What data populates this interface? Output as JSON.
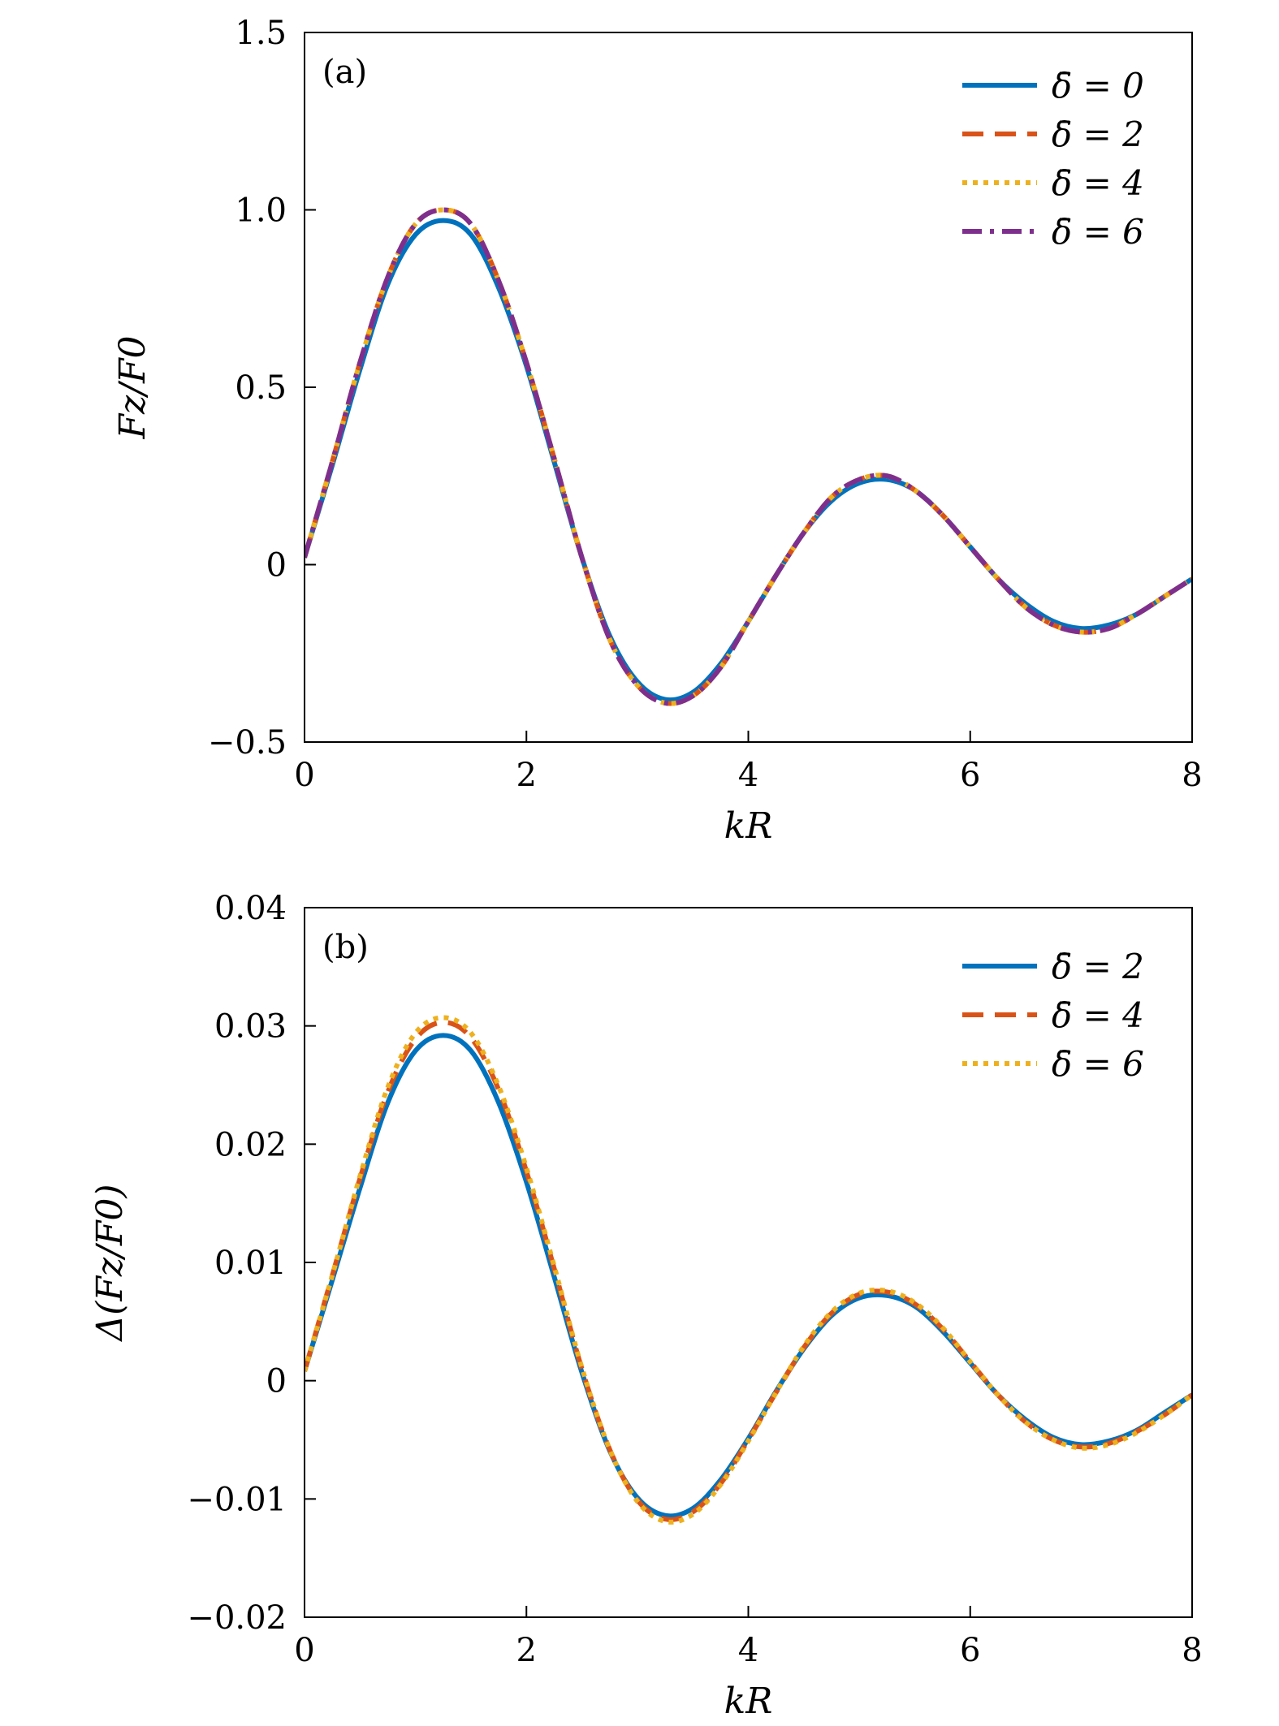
{
  "colors": {
    "series_0": "#0072BD",
    "series_1": "#D95319",
    "series_2": "#EDB120",
    "series_3": "#7E2F8E"
  },
  "chart_data": [
    {
      "type": "line",
      "panel_label": "(a)",
      "xlabel": "kR",
      "ylabel": "Fz/F0",
      "xlim": [
        0,
        8
      ],
      "ylim": [
        -0.5,
        1.5
      ],
      "xticks": [
        0,
        2,
        4,
        6,
        8
      ],
      "xtick_labels": [
        "0",
        "2",
        "4",
        "6",
        "8"
      ],
      "yticks": [
        -0.5,
        0,
        0.5,
        1.0,
        1.5
      ],
      "ytick_labels": [
        "−0.5",
        "0",
        "0.5",
        "1.0",
        "1.5"
      ],
      "grid": false,
      "legend_position": "top-right",
      "x": [
        0.0,
        0.25,
        0.5,
        0.75,
        1.0,
        1.25,
        1.5,
        1.75,
        2.0,
        2.25,
        2.5,
        2.75,
        3.0,
        3.25,
        3.5,
        3.75,
        4.0,
        4.25,
        4.5,
        4.75,
        5.0,
        5.25,
        5.5,
        5.75,
        6.0,
        6.25,
        6.5,
        6.75,
        7.0,
        7.25,
        7.5,
        7.75,
        8.0
      ],
      "series": [
        {
          "name": "δ̄ = 0",
          "style": "solid",
          "values": [
            0.02,
            0.28,
            0.55,
            0.79,
            0.93,
            0.97,
            0.93,
            0.78,
            0.56,
            0.29,
            0.02,
            -0.2,
            -0.33,
            -0.38,
            -0.36,
            -0.28,
            -0.16,
            -0.03,
            0.09,
            0.18,
            0.23,
            0.24,
            0.21,
            0.14,
            0.05,
            -0.04,
            -0.11,
            -0.16,
            -0.18,
            -0.17,
            -0.14,
            -0.09,
            -0.04
          ]
        },
        {
          "name": "δ̄ = 2",
          "style": "dashed",
          "values": [
            0.02,
            0.29,
            0.57,
            0.81,
            0.96,
            1.0,
            0.96,
            0.8,
            0.57,
            0.3,
            0.02,
            -0.21,
            -0.34,
            -0.39,
            -0.37,
            -0.29,
            -0.16,
            -0.03,
            0.09,
            0.19,
            0.24,
            0.25,
            0.21,
            0.14,
            0.05,
            -0.04,
            -0.12,
            -0.17,
            -0.19,
            -0.18,
            -0.14,
            -0.09,
            -0.04
          ]
        },
        {
          "name": "δ̄ = 4",
          "style": "dotted",
          "values": [
            0.02,
            0.29,
            0.57,
            0.81,
            0.96,
            1.0,
            0.96,
            0.8,
            0.57,
            0.3,
            0.02,
            -0.21,
            -0.34,
            -0.39,
            -0.37,
            -0.29,
            -0.16,
            -0.03,
            0.09,
            0.19,
            0.24,
            0.25,
            0.21,
            0.14,
            0.05,
            -0.04,
            -0.12,
            -0.17,
            -0.19,
            -0.18,
            -0.14,
            -0.09,
            -0.04
          ]
        },
        {
          "name": "δ̄ = 6",
          "style": "dashdot",
          "values": [
            0.02,
            0.29,
            0.57,
            0.81,
            0.96,
            1.0,
            0.96,
            0.8,
            0.57,
            0.3,
            0.02,
            -0.21,
            -0.34,
            -0.39,
            -0.37,
            -0.29,
            -0.16,
            -0.03,
            0.09,
            0.19,
            0.24,
            0.25,
            0.21,
            0.14,
            0.05,
            -0.04,
            -0.12,
            -0.17,
            -0.19,
            -0.18,
            -0.14,
            -0.09,
            -0.04
          ]
        }
      ]
    },
    {
      "type": "line",
      "panel_label": "(b)",
      "xlabel": "kR",
      "ylabel": "Δ(Fz/F0)",
      "xlim": [
        0,
        8
      ],
      "ylim": [
        -0.02,
        0.04
      ],
      "xticks": [
        0,
        2,
        4,
        6,
        8
      ],
      "xtick_labels": [
        "0",
        "2",
        "4",
        "6",
        "8"
      ],
      "yticks": [
        -0.02,
        -0.01,
        0,
        0.01,
        0.02,
        0.03,
        0.04
      ],
      "ytick_labels": [
        "−0.02",
        "−0.01",
        "0",
        "0.01",
        "0.02",
        "0.03",
        "0.04"
      ],
      "grid": false,
      "legend_position": "top-right",
      "x": [
        0.0,
        0.25,
        0.5,
        0.75,
        1.0,
        1.25,
        1.5,
        1.75,
        2.0,
        2.25,
        2.5,
        2.75,
        3.0,
        3.25,
        3.5,
        3.75,
        4.0,
        4.25,
        4.5,
        4.75,
        5.0,
        5.25,
        5.5,
        5.75,
        6.0,
        6.25,
        6.5,
        6.75,
        7.0,
        7.25,
        7.5,
        7.75,
        8.0
      ],
      "series": [
        {
          "name": "δ̄ = 2",
          "style": "solid",
          "values": [
            0.0008,
            0.0085,
            0.0163,
            0.0235,
            0.0279,
            0.0292,
            0.0279,
            0.0235,
            0.0168,
            0.0088,
            0.0007,
            -0.0059,
            -0.0099,
            -0.0114,
            -0.0108,
            -0.0084,
            -0.0049,
            -0.0009,
            0.0027,
            0.0055,
            0.007,
            0.0072,
            0.0063,
            0.0042,
            0.0015,
            -0.0012,
            -0.0033,
            -0.0048,
            -0.0054,
            -0.0051,
            -0.0042,
            -0.0027,
            -0.0012
          ]
        },
        {
          "name": "δ̄ = 4",
          "style": "dashed",
          "values": [
            0.0008,
            0.0089,
            0.0171,
            0.0244,
            0.0289,
            0.0303,
            0.029,
            0.0246,
            0.0177,
            0.0095,
            0.001,
            -0.0058,
            -0.0101,
            -0.0117,
            -0.0111,
            -0.0087,
            -0.005,
            -0.001,
            0.0028,
            0.0057,
            0.0073,
            0.0075,
            0.0065,
            0.0044,
            0.0016,
            -0.0012,
            -0.0035,
            -0.005,
            -0.0056,
            -0.0053,
            -0.0043,
            -0.0029,
            -0.0012
          ]
        },
        {
          "name": "δ̄ = 6",
          "style": "dotted",
          "values": [
            0.0008,
            0.0089,
            0.0173,
            0.0248,
            0.0294,
            0.0307,
            0.0294,
            0.0249,
            0.018,
            0.0097,
            0.0011,
            -0.0058,
            -0.0102,
            -0.0119,
            -0.0113,
            -0.0088,
            -0.0051,
            -0.001,
            0.0029,
            0.0058,
            0.0074,
            0.0076,
            0.0066,
            0.0045,
            0.0016,
            -0.0012,
            -0.0035,
            -0.005,
            -0.0057,
            -0.0054,
            -0.0044,
            -0.0029,
            -0.0012
          ]
        }
      ]
    }
  ]
}
